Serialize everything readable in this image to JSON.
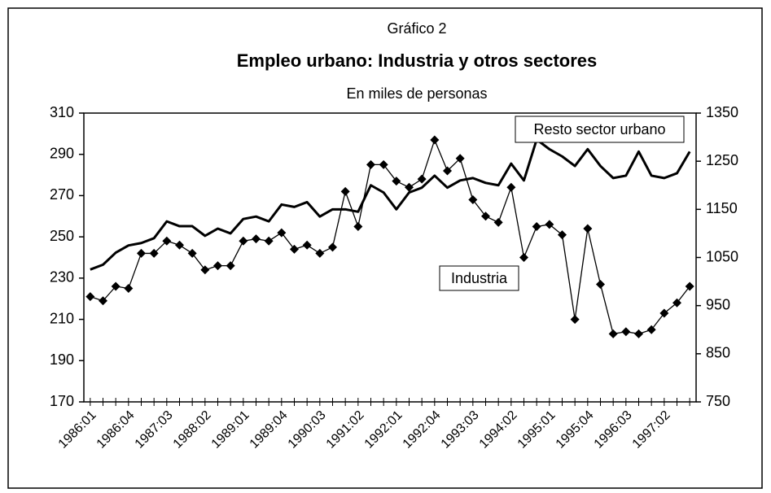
{
  "chart_data": {
    "type": "line",
    "supertitle": "Gráfico 2",
    "title": "Empleo urbano: Industria y otros sectores",
    "subtitle": "En miles de personas",
    "categories": [
      "1986:01",
      null,
      null,
      "1986:04",
      null,
      null,
      "1987:03",
      null,
      null,
      "1988:02",
      null,
      null,
      "1989:01",
      null,
      null,
      "1989:04",
      null,
      null,
      "1990:03",
      null,
      null,
      "1991:02",
      null,
      null,
      "1992:01",
      null,
      null,
      "1992:04",
      null,
      null,
      "1993:03",
      null,
      null,
      "1994:02",
      null,
      null,
      "1995:01",
      null,
      null,
      "1995:04",
      null,
      null,
      "1996:03",
      null,
      null,
      "1997:02",
      null,
      null
    ],
    "ylim": [
      170,
      310
    ],
    "yticks": [
      170,
      190,
      210,
      230,
      250,
      270,
      290,
      310
    ],
    "y2lim": [
      750,
      1350
    ],
    "y2ticks": [
      750,
      850,
      950,
      1050,
      1150,
      1250,
      1350
    ],
    "grid": false,
    "series": [
      {
        "name": "Industria",
        "color": "#000000",
        "marker": "diamond",
        "axis": "y",
        "values": [
          221,
          219,
          226,
          225,
          242,
          242,
          248,
          246,
          242,
          234,
          236,
          236,
          248,
          249,
          248,
          252,
          244,
          246,
          242,
          245,
          272,
          255,
          285,
          285,
          277,
          274,
          278,
          297,
          282,
          288,
          268,
          260,
          257,
          274,
          240,
          255,
          256,
          251,
          210,
          254,
          227,
          203,
          204,
          203,
          205,
          213,
          218,
          226
        ]
      },
      {
        "name": "Resto sector urbano",
        "color": "#000000",
        "axis": "y2",
        "values": [
          1025,
          1035,
          1060,
          1075,
          1080,
          1090,
          1125,
          1115,
          1115,
          1095,
          1110,
          1100,
          1130,
          1135,
          1125,
          1160,
          1155,
          1165,
          1135,
          1150,
          1150,
          1145,
          1200,
          1185,
          1150,
          1185,
          1195,
          1220,
          1195,
          1210,
          1215,
          1205,
          1200,
          1245,
          1210,
          1295,
          1275,
          1260,
          1240,
          1275,
          1240,
          1215,
          1220,
          1270,
          1220,
          1215,
          1225,
          1270
        ]
      }
    ]
  }
}
